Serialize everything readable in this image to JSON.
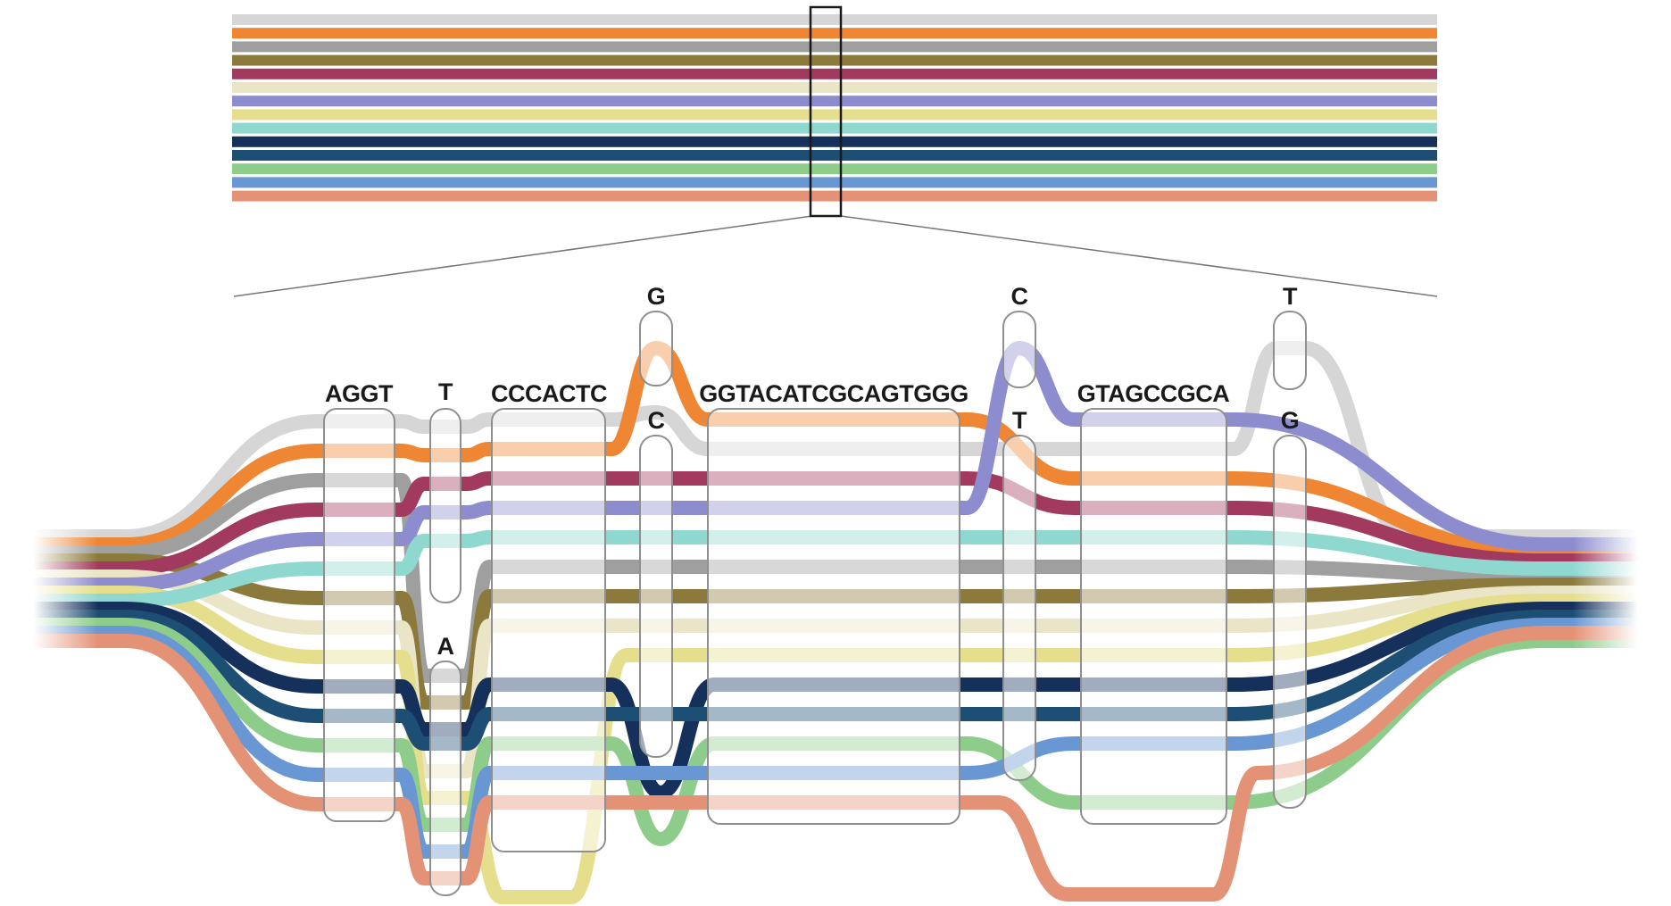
{
  "palette": {
    "lightgray": "#d6d6d6",
    "orange": "#ee8633",
    "gray": "#9f9f9f",
    "olive": "#8c7a3c",
    "maroon": "#a23a5f",
    "cream": "#e9e5c6",
    "purple": "#8d8ccf",
    "yellow": "#e5df8d",
    "turquoise": "#8fd8d0",
    "navy": "#16305c",
    "darkteal": "#1d4e73",
    "green": "#8ecc8c",
    "blue": "#6997d3",
    "salmon": "#e49276"
  },
  "overview": {
    "stripe_order": [
      "lightgray",
      "orange",
      "gray",
      "olive",
      "maroon",
      "cream",
      "purple",
      "yellow",
      "turquoise",
      "navy",
      "darkteal",
      "green",
      "blue",
      "salmon"
    ]
  },
  "detail": {
    "node_labels": [
      "AGGT",
      "T",
      "A",
      "CCCACTC",
      "G",
      "C",
      "GGTACATCGCAGTGGG",
      "C",
      "T",
      "GTAGCCGCA",
      "T",
      "G"
    ],
    "ribbon_order_left": [
      "lightgray",
      "orange",
      "gray",
      "olive",
      "maroon",
      "cream",
      "purple",
      "yellow",
      "turquoise",
      "navy",
      "darkteal",
      "green",
      "blue",
      "salmon"
    ],
    "ribbon_order_right": [
      "lightgray",
      "purple",
      "orange",
      "maroon",
      "turquoise",
      "gray",
      "olive",
      "cream",
      "yellow",
      "navy",
      "darkteal",
      "blue",
      "salmon",
      "green"
    ]
  }
}
